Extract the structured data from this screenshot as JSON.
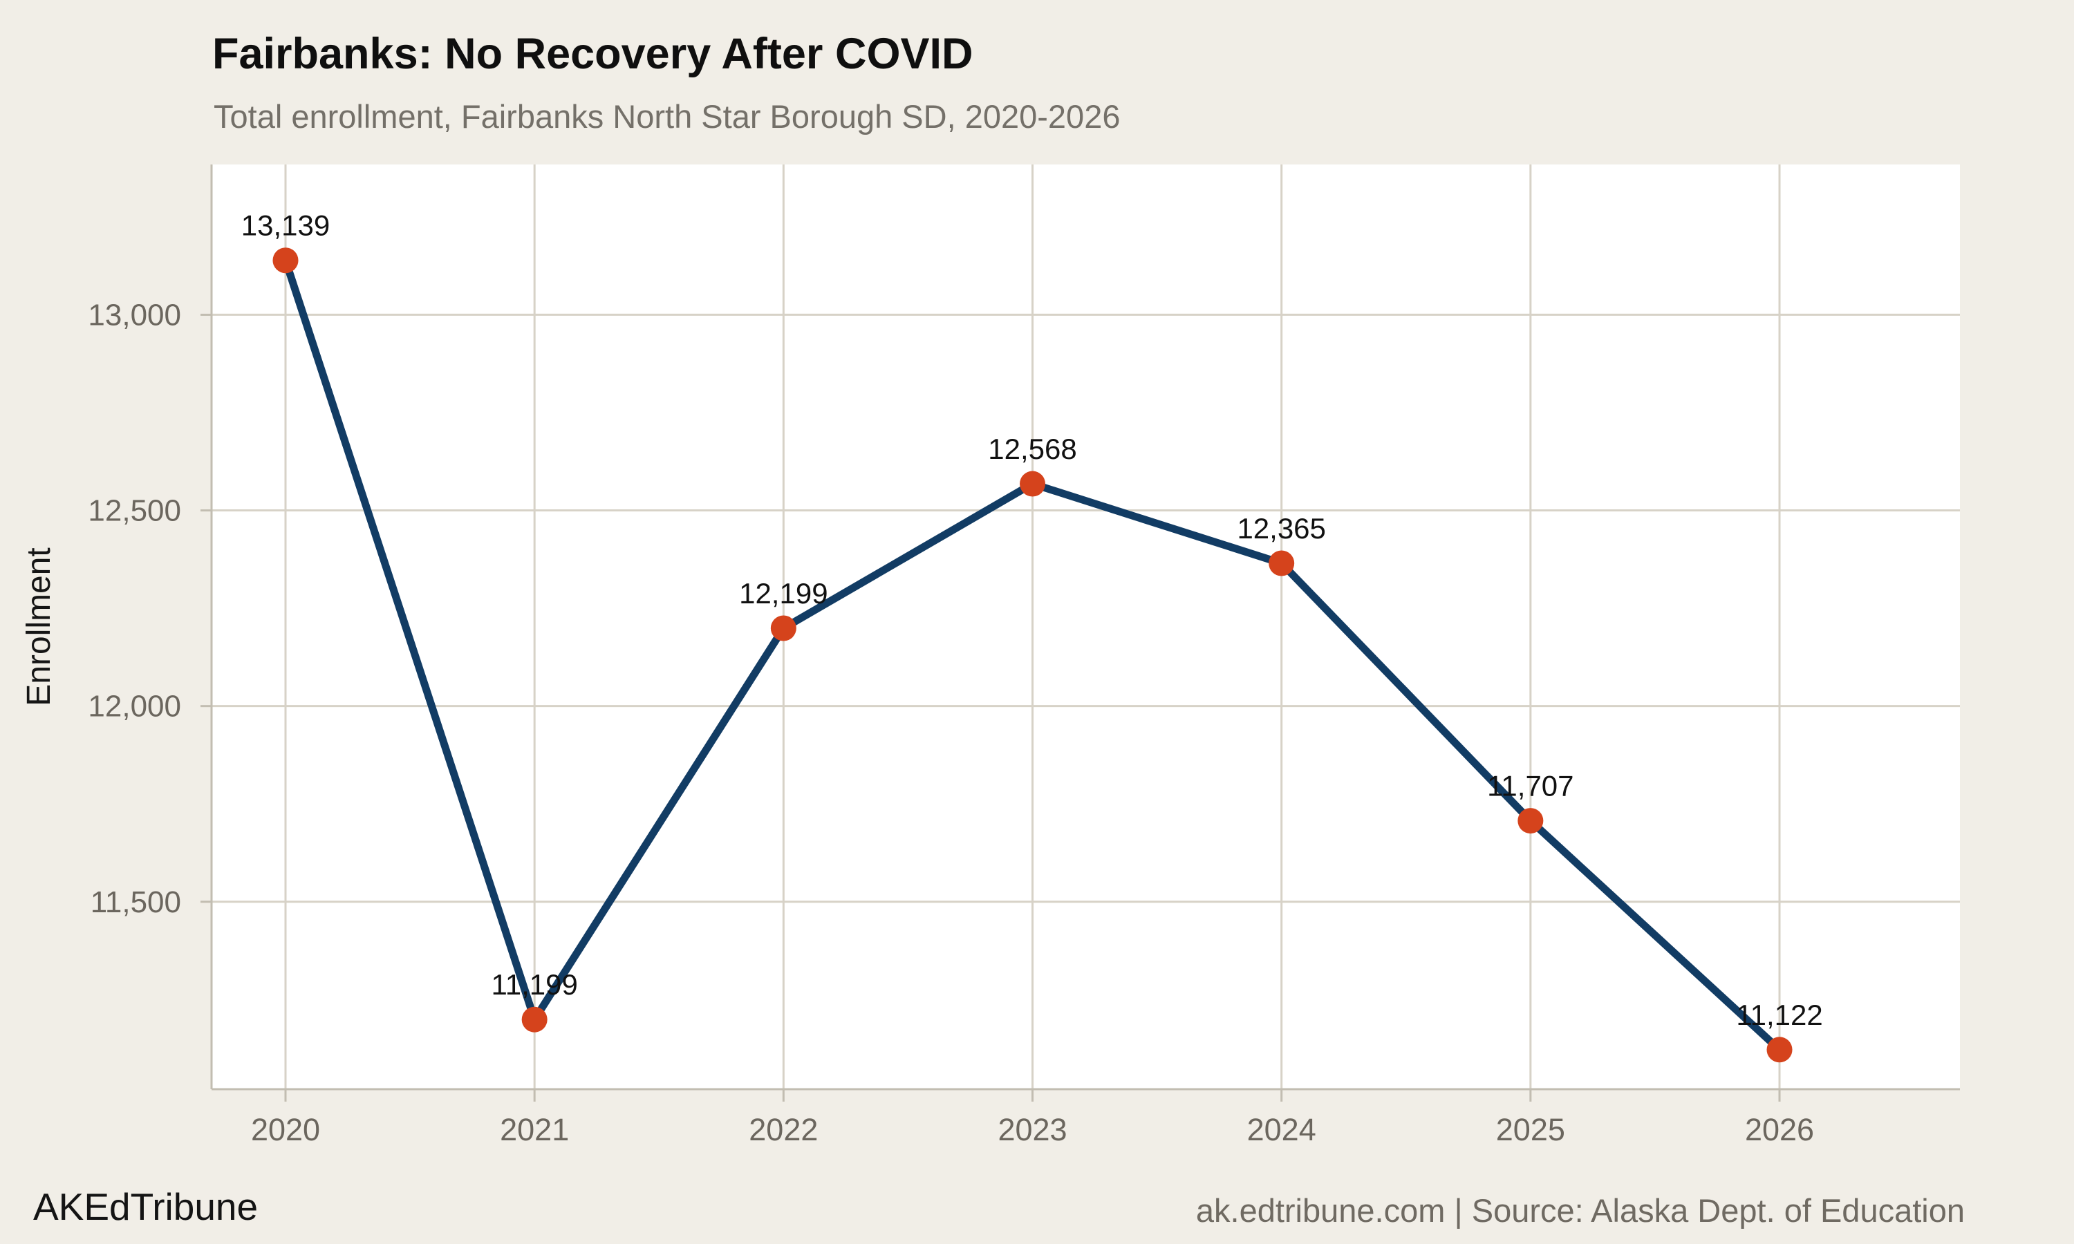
{
  "header": {
    "title": "Fairbanks: No Recovery After COVID",
    "subtitle": "Total enrollment, Fairbanks North Star Borough SD, 2020-2026"
  },
  "footer": {
    "brand": "AKEdTribune",
    "source": "ak.edtribune.com | Source: Alaska Dept. of Education"
  },
  "chart_data": {
    "type": "line",
    "title": "Fairbanks: No Recovery After COVID",
    "subtitle": "Total enrollment, Fairbanks North Star Borough SD, 2020-2026",
    "xlabel": "",
    "ylabel": "Enrollment",
    "x": [
      2020,
      2021,
      2022,
      2023,
      2024,
      2025,
      2026
    ],
    "values": [
      13139,
      11199,
      12199,
      12568,
      12365,
      11707,
      11122
    ],
    "point_labels": [
      "13,139",
      "11,199",
      "12,199",
      "12,568",
      "12,365",
      "11,707",
      "11,122"
    ],
    "x_tick_labels": [
      "2020",
      "2021",
      "2022",
      "2023",
      "2024",
      "2025",
      "2026"
    ],
    "y_ticks": [
      11500,
      12000,
      12500,
      13000
    ],
    "y_tick_labels": [
      "11,500",
      "12,000",
      "12,500",
      "13,000"
    ],
    "ylim": [
      11021,
      13384
    ],
    "grid": true,
    "legend": "none",
    "colors": {
      "line": "#123c64",
      "point": "#d5431c",
      "grid": "#d7d2c7",
      "axis": "#c2bdb1",
      "background": "#f1eee7",
      "panel": "#ffffff",
      "tick_text": "#6b665e",
      "data_label_text": "#111111",
      "axis_title_text": "#151515"
    }
  }
}
